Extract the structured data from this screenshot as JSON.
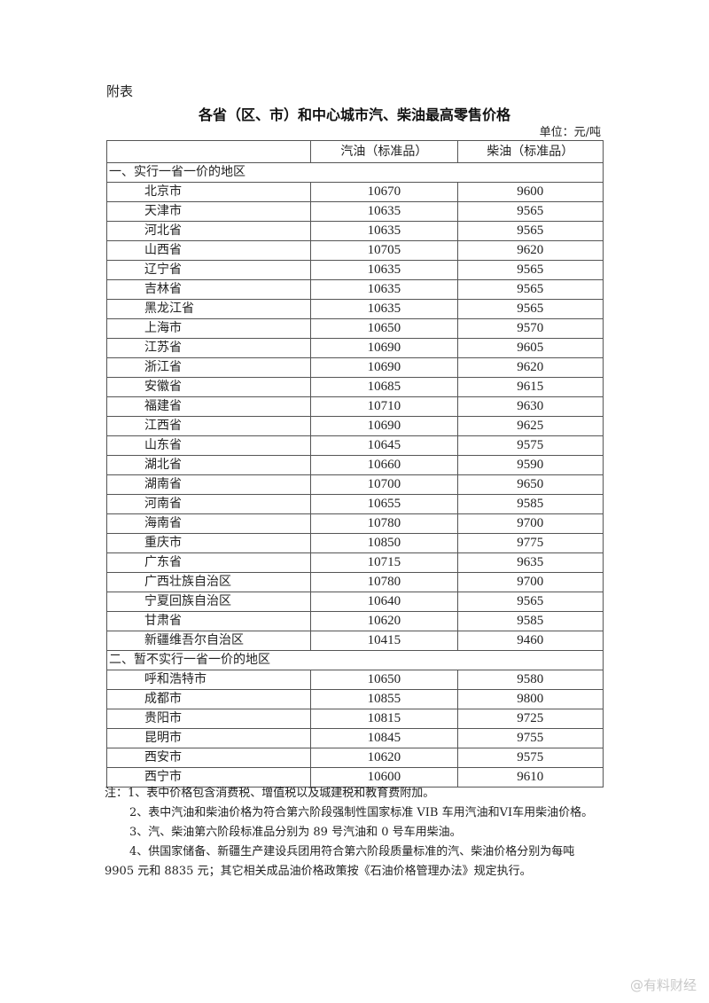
{
  "attachment_label": "附表",
  "title": "各省（区、市）和中心城市汽、柴油最高零售价格",
  "unit": "单位：元/吨",
  "columns": [
    "",
    "汽油（标准品）",
    "柴油（标准品）"
  ],
  "sections": [
    {
      "label": "一、实行一省一价的地区",
      "rows": [
        {
          "region": "北京市",
          "gasoline": "10670",
          "diesel": "9600"
        },
        {
          "region": "天津市",
          "gasoline": "10635",
          "diesel": "9565"
        },
        {
          "region": "河北省",
          "gasoline": "10635",
          "diesel": "9565"
        },
        {
          "region": "山西省",
          "gasoline": "10705",
          "diesel": "9620"
        },
        {
          "region": "辽宁省",
          "gasoline": "10635",
          "diesel": "9565"
        },
        {
          "region": "吉林省",
          "gasoline": "10635",
          "diesel": "9565"
        },
        {
          "region": "黑龙江省",
          "gasoline": "10635",
          "diesel": "9565"
        },
        {
          "region": "上海市",
          "gasoline": "10650",
          "diesel": "9570"
        },
        {
          "region": "江苏省",
          "gasoline": "10690",
          "diesel": "9605"
        },
        {
          "region": "浙江省",
          "gasoline": "10690",
          "diesel": "9620"
        },
        {
          "region": "安徽省",
          "gasoline": "10685",
          "diesel": "9615"
        },
        {
          "region": "福建省",
          "gasoline": "10710",
          "diesel": "9630"
        },
        {
          "region": "江西省",
          "gasoline": "10690",
          "diesel": "9625"
        },
        {
          "region": "山东省",
          "gasoline": "10645",
          "diesel": "9575"
        },
        {
          "region": "湖北省",
          "gasoline": "10660",
          "diesel": "9590"
        },
        {
          "region": "湖南省",
          "gasoline": "10700",
          "diesel": "9650"
        },
        {
          "region": "河南省",
          "gasoline": "10655",
          "diesel": "9585"
        },
        {
          "region": "海南省",
          "gasoline": "10780",
          "diesel": "9700"
        },
        {
          "region": "重庆市",
          "gasoline": "10850",
          "diesel": "9775"
        },
        {
          "region": "广东省",
          "gasoline": "10715",
          "diesel": "9635"
        },
        {
          "region": "广西壮族自治区",
          "gasoline": "10780",
          "diesel": "9700"
        },
        {
          "region": "宁夏回族自治区",
          "gasoline": "10640",
          "diesel": "9565"
        },
        {
          "region": "甘肃省",
          "gasoline": "10620",
          "diesel": "9585"
        },
        {
          "region": "新疆维吾尔自治区",
          "gasoline": "10415",
          "diesel": "9460"
        }
      ]
    },
    {
      "label": "二、暂不实行一省一价的地区",
      "rows": [
        {
          "region": "呼和浩特市",
          "gasoline": "10650",
          "diesel": "9580"
        },
        {
          "region": "成都市",
          "gasoline": "10855",
          "diesel": "9800"
        },
        {
          "region": "贵阳市",
          "gasoline": "10815",
          "diesel": "9725"
        },
        {
          "region": "昆明市",
          "gasoline": "10845",
          "diesel": "9755"
        },
        {
          "region": "西安市",
          "gasoline": "10620",
          "diesel": "9575"
        },
        {
          "region": "西宁市",
          "gasoline": "10600",
          "diesel": "9610"
        }
      ]
    }
  ],
  "notes": [
    "注：1、表中价格包含消费税、增值税以及城建税和教育费附加。",
    "2、表中汽油和柴油价格为符合第六阶段强制性国家标准 VIB 车用汽油和VI车用柴油价格。",
    "3、汽、柴油第六阶段标准品分别为 89 号汽油和 0 号车用柴油。",
    "4、供国家储备、新疆生产建设兵团用符合第六阶段质量标准的汽、柴油价格分别为每吨 9905 元和 8835 元；其它相关成品油价格政策按《石油价格管理办法》规定执行。"
  ],
  "watermark": "@有料财经"
}
